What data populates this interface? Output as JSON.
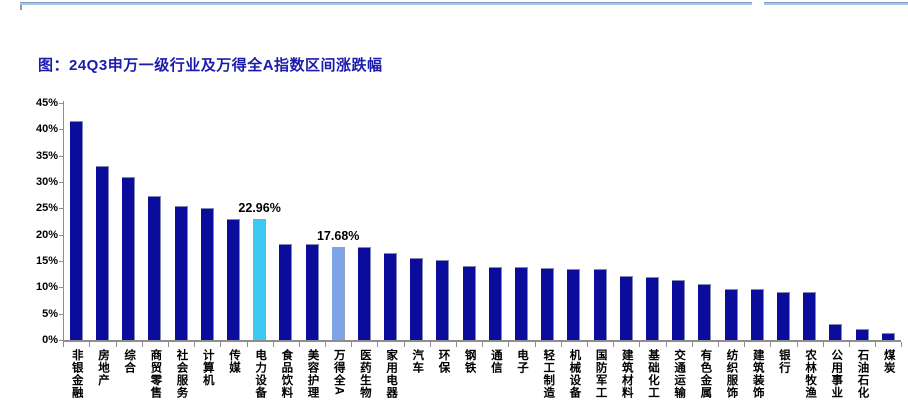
{
  "page": {
    "kind": "report-figure"
  },
  "chart_data": {
    "type": "bar",
    "title": "图：24Q3申万一级行业及万得全A指数区间涨跌幅",
    "xlabel": "",
    "ylabel": "",
    "ylim": [
      0,
      45
    ],
    "ytick_step": 5,
    "ytick_suffix": "%",
    "grid": false,
    "legend_position": "none",
    "categories": [
      "非银金融",
      "房地产",
      "综合",
      "商贸零售",
      "社会服务",
      "计算机",
      "传媒",
      "电力设备",
      "食品饮料",
      "美容护理",
      "万得全A",
      "医药生物",
      "家用电器",
      "汽车",
      "环保",
      "钢铁",
      "通信",
      "电子",
      "轻工制造",
      "机械设备",
      "国防军工",
      "建筑材料",
      "基础化工",
      "交通运输",
      "有色金属",
      "纺织服饰",
      "建筑装饰",
      "银行",
      "农林牧渔",
      "公用事业",
      "石油石化",
      "煤炭"
    ],
    "values": [
      41.6,
      33.0,
      31.0,
      27.4,
      25.4,
      25.1,
      23.0,
      22.96,
      18.3,
      18.2,
      17.68,
      17.6,
      16.6,
      15.5,
      15.2,
      14.1,
      13.9,
      13.8,
      13.7,
      13.5,
      13.4,
      12.2,
      12.0,
      11.3,
      10.7,
      9.7,
      9.6,
      9.2,
      9.1,
      3.1,
      2.0,
      1.3
    ],
    "annotations": [
      {
        "category": "电力设备",
        "text": "22.96%"
      },
      {
        "category": "万得全A",
        "text": "17.68%"
      }
    ],
    "highlights": [
      {
        "category": "电力设备",
        "color": "#3cc9f2"
      },
      {
        "category": "万得全A",
        "color": "#7da4e6"
      }
    ],
    "colors": {
      "bar_default": "#0c0c9c",
      "title": "#1b1bad",
      "axis": "#8e8e8e",
      "top_rule": "#aac5e2"
    }
  }
}
